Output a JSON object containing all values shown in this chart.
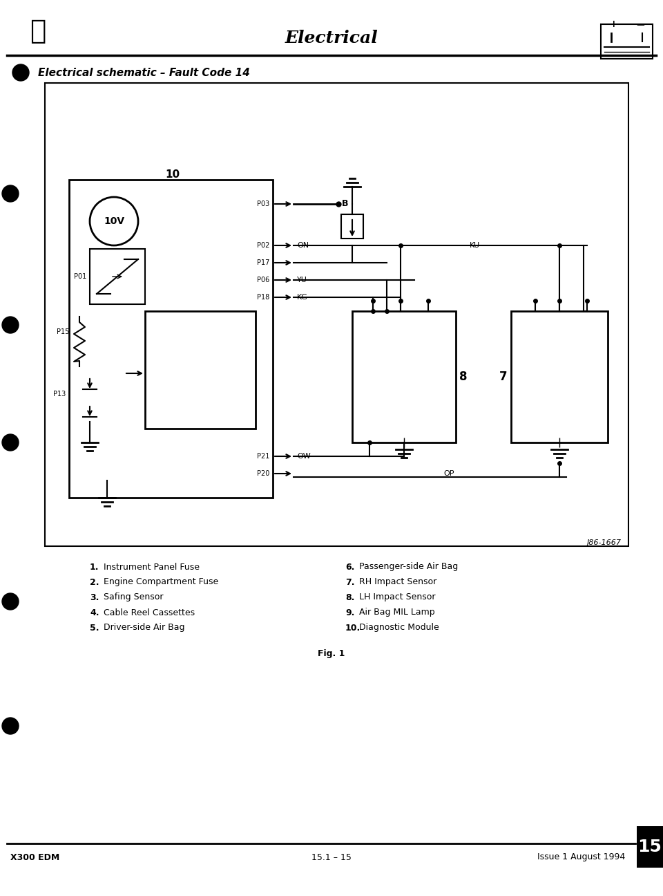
{
  "title": "Electrical",
  "subtitle": "Electrical schematic – Fault Code 14",
  "figure_label": "Fig. 1",
  "figure_ref": "J86-1667",
  "footer_left": "X300 EDM",
  "footer_center": "15.1 – 15",
  "footer_right": "Issue 1 August 1994",
  "page_number": "15",
  "legend_items": [
    [
      "1.",
      "Instrument Panel Fuse",
      "6.",
      "Passenger-side Air Bag"
    ],
    [
      "2.",
      "Engine Compartment Fuse",
      "7.",
      "RH Impact Sensor"
    ],
    [
      "3.",
      "Safing Sensor",
      "8.",
      "LH Impact Sensor"
    ],
    [
      "4.",
      "Cable Reel Cassettes",
      "9.",
      "Air Bag MIL Lamp"
    ],
    [
      "5.",
      "Driver-side Air Bag",
      "10.",
      "Diagnostic Module"
    ]
  ],
  "bg_color": "#ffffff",
  "text_color": "#000000",
  "line_color": "#000000"
}
